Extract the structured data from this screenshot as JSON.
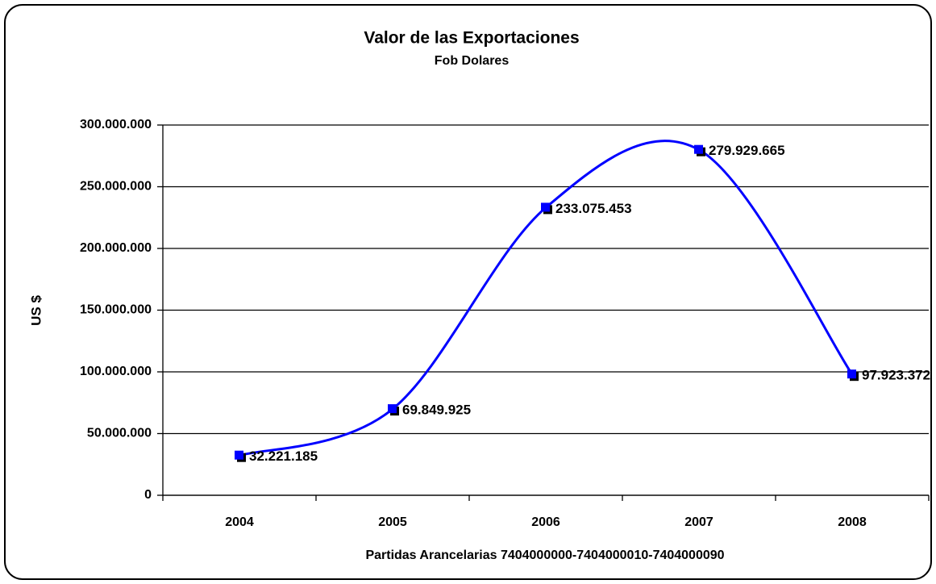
{
  "chart_data": {
    "type": "line",
    "title": "Valor de las Exportaciones",
    "subtitle": "Fob Dolares",
    "y_label": "US $",
    "x_label": "Partidas Arancelarias 7404000000-7404000010-7404000090",
    "categories": [
      "2004",
      "2005",
      "2006",
      "2007",
      "2008"
    ],
    "series": [
      {
        "name": "Valor",
        "color": "#0000ff",
        "values": [
          32221185,
          69849925,
          233075453,
          279929665,
          97923372
        ],
        "value_labels": [
          "32.221.185",
          "69.849.925",
          "233.075.453",
          "279.929.665",
          "97.923.372"
        ]
      }
    ],
    "ylim": [
      0,
      300000000
    ],
    "yticks": [
      0,
      {
        "value": 50000000,
        "label": "50.000.000"
      },
      {
        "value": 100000000,
        "label": "100.000.000"
      },
      {
        "value": 150000000,
        "label": "150.000.000"
      },
      {
        "value": 200000000,
        "label": "200.000.000"
      },
      {
        "value": 250000000,
        "label": "250.000.000"
      },
      {
        "value": 300000000,
        "label": "300.000.000"
      }
    ],
    "grid": true,
    "smooth": true
  }
}
